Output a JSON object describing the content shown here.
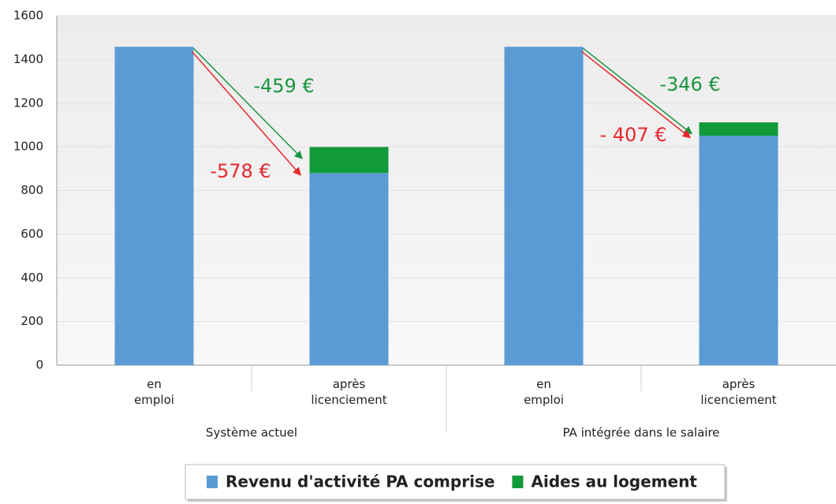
{
  "chart_data": {
    "type": "stacked_bar",
    "categories": [
      "en emploi",
      "après licenciement",
      "en emploi",
      "après licenciement"
    ],
    "groups": [
      "Système actuel",
      "PA intégrée dans le salaire"
    ],
    "series": [
      {
        "name": "Revenu d'activité PA comprise",
        "color": "#5b9bd5",
        "values": [
          1458,
          880,
          1458,
          1051
        ]
      },
      {
        "name": "Aides au logement",
        "color": "#119a3a",
        "values": [
          0,
          119,
          0,
          61
        ]
      }
    ],
    "annotations": [
      {
        "text": "-459 €",
        "color": "#1a9641"
      },
      {
        "text": "-578 €",
        "color": "#e8262c"
      },
      {
        "text": "-346 €",
        "color": "#1a9641"
      },
      {
        "text": "- 407 €",
        "color": "#e8262c"
      }
    ],
    "ylim": [
      0,
      1600
    ],
    "yticks": [
      0,
      200,
      400,
      600,
      800,
      1000,
      1200,
      1400,
      1600
    ],
    "grid": true,
    "legend": "bottom"
  }
}
